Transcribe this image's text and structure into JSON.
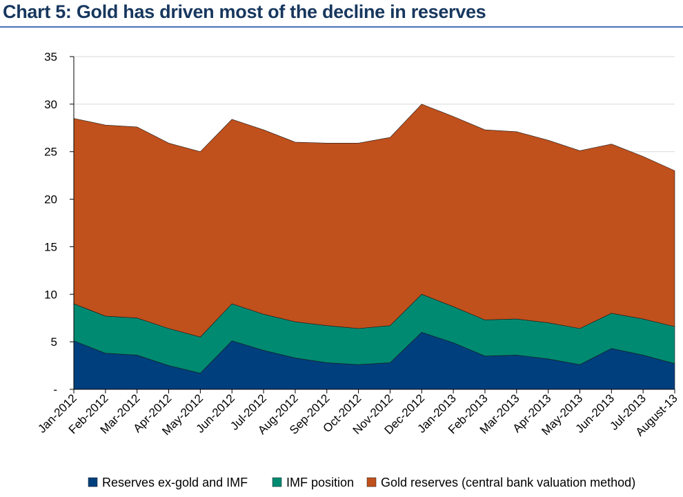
{
  "title": "Chart 5: Gold has driven most of the decline in reserves",
  "chart_data": {
    "type": "area",
    "stacked": true,
    "categories": [
      "Jan-2012",
      "Feb-2012",
      "Mar-2012",
      "Apr-2012",
      "May-2012",
      "Jun-2012",
      "Jul-2012",
      "Aug-2012",
      "Sep-2012",
      "Oct-2012",
      "Nov-2012",
      "Dec-2012",
      "Jan-2013",
      "Feb-2013",
      "Mar-2013",
      "Apr-2013",
      "May-2013",
      "Jun-2013",
      "Jul-2013",
      "August-13"
    ],
    "ylim": [
      0,
      35
    ],
    "yticks": [
      0,
      5,
      10,
      15,
      20,
      25,
      30,
      35
    ],
    "ytick_labels": [
      "-",
      "5",
      "10",
      "15",
      "20",
      "25",
      "30",
      "35"
    ],
    "grid": true,
    "legend_position": "bottom",
    "series": [
      {
        "name": "Reserves ex-gold and IMF",
        "color": "#003f7d",
        "values": [
          5.1,
          3.8,
          3.6,
          2.5,
          1.7,
          5.1,
          4.1,
          3.3,
          2.8,
          2.6,
          2.8,
          6.0,
          4.9,
          3.5,
          3.6,
          3.2,
          2.6,
          4.3,
          3.6,
          2.7
        ]
      },
      {
        "name": "IMF position",
        "color": "#008a72",
        "values": [
          3.9,
          3.9,
          3.9,
          3.9,
          3.8,
          3.9,
          3.8,
          3.8,
          3.9,
          3.8,
          3.9,
          4.0,
          3.8,
          3.8,
          3.8,
          3.8,
          3.8,
          3.7,
          3.8,
          3.9
        ]
      },
      {
        "name": "Gold reserves (central bank valuation method)",
        "color": "#c0501c",
        "values": [
          19.5,
          20.1,
          20.1,
          19.5,
          19.5,
          19.4,
          19.4,
          18.9,
          19.2,
          19.5,
          19.8,
          20.0,
          20.0,
          20.0,
          19.7,
          19.2,
          18.7,
          17.8,
          17.1,
          16.4
        ]
      }
    ]
  }
}
